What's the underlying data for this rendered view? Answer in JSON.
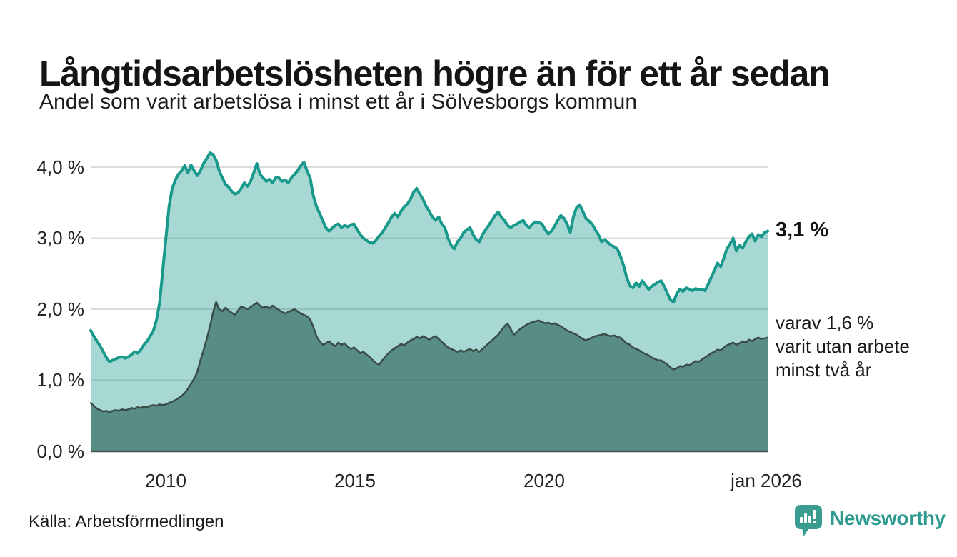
{
  "header": {
    "title": "Långtidsarbetslösheten högre än för ett år sedan",
    "subtitle": "Andel som varit arbetslösa i minst ett år i Sölvesborgs kommun"
  },
  "footer": {
    "source": "Källa: Arbetsförmedlingen",
    "brand": "Newsworthy",
    "brand_color": "#2d9b90"
  },
  "chart_data": {
    "type": "area",
    "title": "Långtidsarbetslösheten högre än för ett år sedan",
    "subtitle": "Andel som varit arbetslösa i minst ett år i Sölvesborgs kommun",
    "x_start": 2008,
    "x_end": 2026,
    "points_per_year": 12,
    "ylim": [
      0,
      4.4
    ],
    "grid": true,
    "legend_position": "right-annotations",
    "colors": {
      "grid": "#dcdcdc",
      "axis": "#42534e",
      "tick_text": "#222222"
    },
    "y_ticks": [
      {
        "value": 4,
        "label": "4,0 %"
      },
      {
        "value": 3,
        "label": "3,0 %"
      },
      {
        "value": 2,
        "label": "2,0 %"
      },
      {
        "value": 1,
        "label": "1,0 %"
      },
      {
        "value": 0,
        "label": "0,0 %"
      }
    ],
    "x_ticks": [
      {
        "value": 2010,
        "label": "2010"
      },
      {
        "value": 2015,
        "label": "2015"
      },
      {
        "value": 2020,
        "label": "2020"
      },
      {
        "value": 2026,
        "label": "jan 2026"
      }
    ],
    "annotations": {
      "primary": "3,1 %",
      "secondary": [
        "varav 1,6 %",
        "varit utan arbete",
        "minst två år"
      ]
    },
    "series": [
      {
        "name": "arbetslösa minst ett år",
        "end_value": 3.1,
        "line_color": "#19998b",
        "line_width": 4,
        "fill_color": "rgba(24,153,139,0.38)",
        "values": [
          1.7,
          1.62,
          1.55,
          1.48,
          1.4,
          1.32,
          1.26,
          1.28,
          1.3,
          1.32,
          1.33,
          1.31,
          1.33,
          1.36,
          1.4,
          1.38,
          1.43,
          1.5,
          1.55,
          1.62,
          1.7,
          1.85,
          2.1,
          2.55,
          3.0,
          3.45,
          3.7,
          3.82,
          3.9,
          3.95,
          4.02,
          3.92,
          4.03,
          3.95,
          3.88,
          3.95,
          4.05,
          4.12,
          4.2,
          4.18,
          4.1,
          3.95,
          3.85,
          3.76,
          3.72,
          3.66,
          3.62,
          3.64,
          3.7,
          3.78,
          3.73,
          3.8,
          3.92,
          4.05,
          3.9,
          3.85,
          3.8,
          3.83,
          3.78,
          3.85,
          3.85,
          3.8,
          3.82,
          3.78,
          3.85,
          3.9,
          3.95,
          4.02,
          4.07,
          3.95,
          3.85,
          3.6,
          3.45,
          3.35,
          3.25,
          3.15,
          3.1,
          3.14,
          3.18,
          3.2,
          3.15,
          3.18,
          3.16,
          3.19,
          3.2,
          3.12,
          3.05,
          3.0,
          2.97,
          2.94,
          2.93,
          2.97,
          3.03,
          3.08,
          3.15,
          3.22,
          3.3,
          3.35,
          3.3,
          3.38,
          3.44,
          3.48,
          3.55,
          3.65,
          3.7,
          3.62,
          3.55,
          3.45,
          3.38,
          3.3,
          3.25,
          3.3,
          3.2,
          3.15,
          3.0,
          2.9,
          2.85,
          2.95,
          3.0,
          3.08,
          3.12,
          3.15,
          3.05,
          2.98,
          2.95,
          3.05,
          3.12,
          3.18,
          3.25,
          3.32,
          3.37,
          3.3,
          3.25,
          3.18,
          3.15,
          3.18,
          3.2,
          3.23,
          3.25,
          3.18,
          3.15,
          3.2,
          3.23,
          3.22,
          3.2,
          3.12,
          3.06,
          3.1,
          3.17,
          3.25,
          3.32,
          3.28,
          3.2,
          3.08,
          3.3,
          3.43,
          3.47,
          3.38,
          3.28,
          3.24,
          3.2,
          3.12,
          3.05,
          2.95,
          2.98,
          2.94,
          2.9,
          2.88,
          2.85,
          2.75,
          2.62,
          2.45,
          2.33,
          2.3,
          2.37,
          2.32,
          2.4,
          2.34,
          2.28,
          2.32,
          2.35,
          2.38,
          2.4,
          2.32,
          2.22,
          2.13,
          2.1,
          2.22,
          2.28,
          2.25,
          2.3,
          2.28,
          2.26,
          2.29,
          2.27,
          2.28,
          2.26,
          2.35,
          2.45,
          2.55,
          2.65,
          2.6,
          2.72,
          2.85,
          2.92,
          3.0,
          2.82,
          2.9,
          2.86,
          2.95,
          3.02,
          3.06,
          2.96,
          3.05,
          3.02,
          3.08,
          3.1
        ]
      },
      {
        "name": "varav utan arbete minst två år",
        "end_value": 1.6,
        "line_color": "#3a4c47",
        "line_width": 2.5,
        "fill_color": "rgba(46,102,92,0.66)",
        "values": [
          0.68,
          0.64,
          0.6,
          0.58,
          0.56,
          0.57,
          0.55,
          0.57,
          0.58,
          0.57,
          0.59,
          0.58,
          0.59,
          0.61,
          0.6,
          0.62,
          0.61,
          0.63,
          0.62,
          0.64,
          0.65,
          0.64,
          0.66,
          0.65,
          0.66,
          0.68,
          0.7,
          0.72,
          0.75,
          0.78,
          0.82,
          0.88,
          0.95,
          1.02,
          1.12,
          1.28,
          1.42,
          1.58,
          1.75,
          1.95,
          2.1,
          2.0,
          1.97,
          2.02,
          1.98,
          1.95,
          1.92,
          1.98,
          2.04,
          2.02,
          2.0,
          2.03,
          2.06,
          2.09,
          2.05,
          2.02,
          2.04,
          2.01,
          2.05,
          2.02,
          1.99,
          1.96,
          1.94,
          1.96,
          1.98,
          2.0,
          1.97,
          1.94,
          1.92,
          1.9,
          1.86,
          1.75,
          1.62,
          1.55,
          1.5,
          1.52,
          1.55,
          1.51,
          1.48,
          1.53,
          1.5,
          1.52,
          1.47,
          1.44,
          1.46,
          1.42,
          1.38,
          1.4,
          1.36,
          1.33,
          1.28,
          1.24,
          1.22,
          1.28,
          1.33,
          1.38,
          1.42,
          1.45,
          1.48,
          1.51,
          1.49,
          1.53,
          1.56,
          1.58,
          1.61,
          1.59,
          1.62,
          1.6,
          1.57,
          1.6,
          1.62,
          1.58,
          1.54,
          1.5,
          1.46,
          1.44,
          1.42,
          1.4,
          1.42,
          1.4,
          1.42,
          1.44,
          1.41,
          1.43,
          1.4,
          1.44,
          1.48,
          1.52,
          1.56,
          1.6,
          1.64,
          1.7,
          1.76,
          1.8,
          1.72,
          1.64,
          1.68,
          1.72,
          1.75,
          1.78,
          1.8,
          1.82,
          1.83,
          1.84,
          1.82,
          1.8,
          1.81,
          1.79,
          1.8,
          1.78,
          1.76,
          1.73,
          1.7,
          1.68,
          1.66,
          1.64,
          1.61,
          1.58,
          1.56,
          1.58,
          1.6,
          1.62,
          1.63,
          1.64,
          1.65,
          1.63,
          1.62,
          1.63,
          1.61,
          1.6,
          1.56,
          1.52,
          1.5,
          1.46,
          1.44,
          1.42,
          1.39,
          1.37,
          1.35,
          1.32,
          1.3,
          1.28,
          1.28,
          1.25,
          1.22,
          1.18,
          1.15,
          1.17,
          1.2,
          1.19,
          1.22,
          1.21,
          1.24,
          1.27,
          1.26,
          1.29,
          1.32,
          1.35,
          1.38,
          1.4,
          1.43,
          1.42,
          1.46,
          1.49,
          1.51,
          1.53,
          1.5,
          1.52,
          1.55,
          1.53,
          1.57,
          1.55,
          1.58,
          1.6,
          1.58,
          1.59,
          1.6
        ]
      }
    ]
  }
}
